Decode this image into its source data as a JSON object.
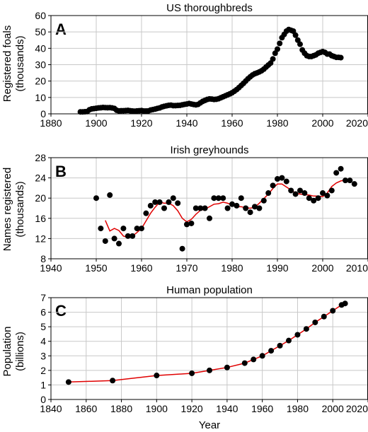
{
  "xlabel": "Year",
  "chart_data": [
    {
      "type": "scatter",
      "panel": "A",
      "title": "US thoroughbreds",
      "ylabel": [
        "Registered foals",
        "(thousands)"
      ],
      "xlim": [
        1880,
        2020
      ],
      "ylim": [
        0,
        60
      ],
      "xticks": [
        1880,
        1900,
        1920,
        1940,
        1960,
        1980,
        2000,
        2020
      ],
      "yticks": [
        0,
        10,
        20,
        30,
        40,
        50,
        60
      ],
      "grid": true,
      "points": [
        [
          1893,
          1.2
        ],
        [
          1894,
          1.2
        ],
        [
          1895,
          1.3
        ],
        [
          1896,
          1.4
        ],
        [
          1897,
          2.5
        ],
        [
          1898,
          3.0
        ],
        [
          1899,
          3.2
        ],
        [
          1900,
          3.4
        ],
        [
          1901,
          3.6
        ],
        [
          1902,
          3.7
        ],
        [
          1903,
          3.9
        ],
        [
          1904,
          3.8
        ],
        [
          1905,
          3.7
        ],
        [
          1906,
          3.8
        ],
        [
          1907,
          3.6
        ],
        [
          1908,
          3.3
        ],
        [
          1909,
          2.2
        ],
        [
          1910,
          1.8
        ],
        [
          1911,
          1.9
        ],
        [
          1912,
          1.9
        ],
        [
          1913,
          2.0
        ],
        [
          1914,
          2.1
        ],
        [
          1915,
          1.9
        ],
        [
          1916,
          1.7
        ],
        [
          1917,
          1.6
        ],
        [
          1918,
          1.8
        ],
        [
          1919,
          1.9
        ],
        [
          1920,
          2.0
        ],
        [
          1921,
          1.7
        ],
        [
          1922,
          1.7
        ],
        [
          1923,
          1.8
        ],
        [
          1924,
          2.3
        ],
        [
          1925,
          2.6
        ],
        [
          1926,
          2.9
        ],
        [
          1927,
          3.3
        ],
        [
          1928,
          3.6
        ],
        [
          1929,
          4.2
        ],
        [
          1930,
          4.6
        ],
        [
          1931,
          4.9
        ],
        [
          1932,
          5.2
        ],
        [
          1933,
          5.3
        ],
        [
          1934,
          5.0
        ],
        [
          1935,
          5.0
        ],
        [
          1936,
          5.1
        ],
        [
          1937,
          5.2
        ],
        [
          1938,
          5.5
        ],
        [
          1939,
          5.8
        ],
        [
          1940,
          6.0
        ],
        [
          1941,
          6.3
        ],
        [
          1942,
          6.0
        ],
        [
          1943,
          5.7
        ],
        [
          1944,
          5.5
        ],
        [
          1945,
          5.8
        ],
        [
          1946,
          6.7
        ],
        [
          1947,
          7.6
        ],
        [
          1948,
          8.2
        ],
        [
          1949,
          8.8
        ],
        [
          1950,
          9.1
        ],
        [
          1951,
          9.0
        ],
        [
          1952,
          8.8
        ],
        [
          1953,
          8.9
        ],
        [
          1954,
          9.2
        ],
        [
          1955,
          9.8
        ],
        [
          1956,
          10.4
        ],
        [
          1957,
          11.0
        ],
        [
          1958,
          11.6
        ],
        [
          1959,
          12.2
        ],
        [
          1960,
          12.9
        ],
        [
          1961,
          13.8
        ],
        [
          1962,
          14.8
        ],
        [
          1963,
          16.0
        ],
        [
          1964,
          17.3
        ],
        [
          1965,
          18.6
        ],
        [
          1966,
          20.0
        ],
        [
          1967,
          21.4
        ],
        [
          1968,
          22.6
        ],
        [
          1969,
          23.7
        ],
        [
          1970,
          24.5
        ],
        [
          1971,
          25.0
        ],
        [
          1972,
          25.6
        ],
        [
          1973,
          26.3
        ],
        [
          1974,
          27.3
        ],
        [
          1975,
          28.6
        ],
        [
          1976,
          29.8
        ],
        [
          1977,
          31.0
        ],
        [
          1978,
          33.5
        ],
        [
          1979,
          37.0
        ],
        [
          1980,
          39.5
        ],
        [
          1981,
          43.0
        ],
        [
          1982,
          46.5
        ],
        [
          1983,
          48.5
        ],
        [
          1984,
          50.5
        ],
        [
          1985,
          51.5
        ],
        [
          1986,
          51.0
        ],
        [
          1987,
          50.5
        ],
        [
          1988,
          48.0
        ],
        [
          1989,
          45.0
        ],
        [
          1990,
          42.5
        ],
        [
          1991,
          39.0
        ],
        [
          1992,
          37.0
        ],
        [
          1993,
          35.5
        ],
        [
          1994,
          35.0
        ],
        [
          1995,
          35.0
        ],
        [
          1996,
          35.5
        ],
        [
          1997,
          36.0
        ],
        [
          1998,
          37.0
        ],
        [
          1999,
          37.5
        ],
        [
          2000,
          38.0
        ],
        [
          2001,
          37.5
        ],
        [
          2002,
          36.5
        ],
        [
          2003,
          36.5
        ],
        [
          2004,
          35.5
        ],
        [
          2005,
          35.0
        ],
        [
          2006,
          34.5
        ],
        [
          2007,
          34.5
        ],
        [
          2008,
          34.3
        ]
      ]
    },
    {
      "type": "scatter",
      "panel": "B",
      "title": "Irish greyhounds",
      "ylabel": [
        "Names registered",
        "(thousands)"
      ],
      "xlim": [
        1940,
        2010
      ],
      "ylim": [
        8,
        28
      ],
      "xticks": [
        1940,
        1950,
        1960,
        1970,
        1980,
        1990,
        2000,
        2010
      ],
      "yticks": [
        8,
        12,
        16,
        20,
        24,
        28
      ],
      "grid": true,
      "points": [
        [
          1950,
          20.0
        ],
        [
          1951,
          14.0
        ],
        [
          1952,
          11.5
        ],
        [
          1953,
          20.6
        ],
        [
          1954,
          12.0
        ],
        [
          1955,
          11.0
        ],
        [
          1956,
          14.0
        ],
        [
          1957,
          12.5
        ],
        [
          1958,
          12.5
        ],
        [
          1959,
          14.0
        ],
        [
          1960,
          14.0
        ],
        [
          1961,
          17.0
        ],
        [
          1962,
          18.5
        ],
        [
          1963,
          19.2
        ],
        [
          1964,
          19.2
        ],
        [
          1965,
          18.0
        ],
        [
          1966,
          19.2
        ],
        [
          1967,
          20.0
        ],
        [
          1968,
          19.0
        ],
        [
          1969,
          10.0
        ],
        [
          1970,
          14.8
        ],
        [
          1971,
          15.0
        ],
        [
          1972,
          18.0
        ],
        [
          1973,
          18.0
        ],
        [
          1974,
          18.0
        ],
        [
          1975,
          16.0
        ],
        [
          1976,
          20.0
        ],
        [
          1977,
          20.0
        ],
        [
          1978,
          20.0
        ],
        [
          1979,
          18.0
        ],
        [
          1980,
          18.8
        ],
        [
          1981,
          18.5
        ],
        [
          1982,
          20.0
        ],
        [
          1983,
          18.0
        ],
        [
          1984,
          17.2
        ],
        [
          1985,
          18.3
        ],
        [
          1986,
          18.0
        ],
        [
          1987,
          19.5
        ],
        [
          1988,
          21.0
        ],
        [
          1989,
          22.5
        ],
        [
          1990,
          23.8
        ],
        [
          1991,
          24.0
        ],
        [
          1992,
          23.3
        ],
        [
          1993,
          21.5
        ],
        [
          1994,
          20.8
        ],
        [
          1995,
          21.5
        ],
        [
          1996,
          21.0
        ],
        [
          1997,
          20.0
        ],
        [
          1998,
          19.5
        ],
        [
          1999,
          20.0
        ],
        [
          2000,
          21.0
        ],
        [
          2001,
          20.5
        ],
        [
          2002,
          21.5
        ],
        [
          2003,
          25.0
        ],
        [
          2004,
          25.8
        ],
        [
          2005,
          23.5
        ],
        [
          2006,
          23.5
        ],
        [
          2007,
          22.8
        ]
      ],
      "smooth": [
        [
          1952,
          15.6
        ],
        [
          1953,
          13.5
        ],
        [
          1954,
          14.0
        ],
        [
          1955,
          13.6
        ],
        [
          1956,
          12.5
        ],
        [
          1957,
          12.2
        ],
        [
          1958,
          12.5
        ],
        [
          1959,
          13.2
        ],
        [
          1960,
          14.0
        ],
        [
          1961,
          15.5
        ],
        [
          1962,
          17.0
        ],
        [
          1963,
          18.2
        ],
        [
          1964,
          19.2
        ],
        [
          1965,
          19.0
        ],
        [
          1966,
          19.0
        ],
        [
          1967,
          18.5
        ],
        [
          1968,
          17.5
        ],
        [
          1969,
          16.0
        ],
        [
          1970,
          15.3
        ],
        [
          1971,
          15.8
        ],
        [
          1972,
          16.8
        ],
        [
          1973,
          17.6
        ],
        [
          1974,
          17.8
        ],
        [
          1975,
          18.3
        ],
        [
          1976,
          18.8
        ],
        [
          1977,
          18.9
        ],
        [
          1978,
          19.2
        ],
        [
          1979,
          19.0
        ],
        [
          1980,
          18.6
        ],
        [
          1981,
          18.3
        ],
        [
          1982,
          18.3
        ],
        [
          1983,
          18.1
        ],
        [
          1984,
          18.0
        ],
        [
          1985,
          18.2
        ],
        [
          1986,
          19.0
        ],
        [
          1987,
          19.9
        ],
        [
          1988,
          20.8
        ],
        [
          1989,
          21.9
        ],
        [
          1990,
          22.8
        ],
        [
          1991,
          22.8
        ],
        [
          1992,
          22.2
        ],
        [
          1993,
          21.6
        ],
        [
          1994,
          21.0
        ],
        [
          1995,
          20.8
        ],
        [
          1996,
          20.7
        ],
        [
          1997,
          20.6
        ],
        [
          1998,
          20.4
        ],
        [
          1999,
          20.4
        ],
        [
          2000,
          20.3
        ],
        [
          2001,
          21.0
        ],
        [
          2002,
          22.3
        ],
        [
          2003,
          23.0
        ],
        [
          2004,
          23.4
        ],
        [
          2005,
          23.6
        ]
      ]
    },
    {
      "type": "line",
      "panel": "C",
      "title": "Human population",
      "ylabel": [
        "Population",
        "(billions)"
      ],
      "xlabel": "Year",
      "xlim": [
        1840,
        2020
      ],
      "ylim": [
        0,
        7
      ],
      "xticks": [
        1840,
        1860,
        1880,
        1900,
        1920,
        1940,
        1960,
        1980,
        2000,
        2020
      ],
      "yticks": [
        0,
        1,
        2,
        3,
        4,
        5,
        6,
        7
      ],
      "grid": true,
      "points": [
        [
          1850,
          1.2
        ],
        [
          1875,
          1.3
        ],
        [
          1900,
          1.65
        ],
        [
          1920,
          1.8
        ],
        [
          1930,
          2.0
        ],
        [
          1940,
          2.2
        ],
        [
          1950,
          2.5
        ],
        [
          1955,
          2.75
        ],
        [
          1960,
          3.0
        ],
        [
          1965,
          3.35
        ],
        [
          1970,
          3.7
        ],
        [
          1975,
          4.05
        ],
        [
          1980,
          4.45
        ],
        [
          1985,
          4.85
        ],
        [
          1990,
          5.3
        ],
        [
          1995,
          5.7
        ],
        [
          2000,
          6.1
        ],
        [
          2005,
          6.5
        ],
        [
          2007,
          6.6
        ]
      ],
      "smooth": [
        [
          1850,
          1.2
        ],
        [
          1875,
          1.3
        ],
        [
          1900,
          1.65
        ],
        [
          1920,
          1.8
        ],
        [
          1930,
          2.0
        ],
        [
          1940,
          2.2
        ],
        [
          1950,
          2.5
        ],
        [
          1955,
          2.75
        ],
        [
          1960,
          3.0
        ],
        [
          1965,
          3.35
        ],
        [
          1970,
          3.7
        ],
        [
          1975,
          4.05
        ],
        [
          1980,
          4.45
        ],
        [
          1985,
          4.85
        ],
        [
          1990,
          5.3
        ],
        [
          1995,
          5.7
        ],
        [
          2000,
          6.1
        ],
        [
          2005,
          6.5
        ],
        [
          2007,
          6.6
        ]
      ]
    }
  ]
}
